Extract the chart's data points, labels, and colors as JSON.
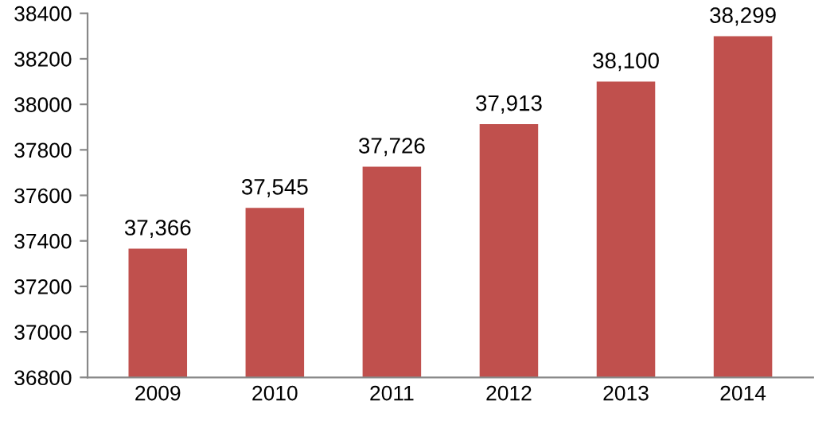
{
  "chart_data": {
    "type": "bar",
    "categories": [
      "2009",
      "2010",
      "2011",
      "2012",
      "2013",
      "2014"
    ],
    "values": [
      37366,
      37545,
      37726,
      37913,
      38100,
      38299
    ],
    "value_labels": [
      "37,366",
      "37,545",
      "37,726",
      "37,913",
      "38,100",
      "38,299"
    ],
    "color": "#c0504d",
    "ylim": [
      36800,
      38400
    ],
    "yticks": [
      36800,
      37000,
      37200,
      37400,
      37600,
      37800,
      38000,
      38200,
      38400
    ],
    "grid": false
  }
}
